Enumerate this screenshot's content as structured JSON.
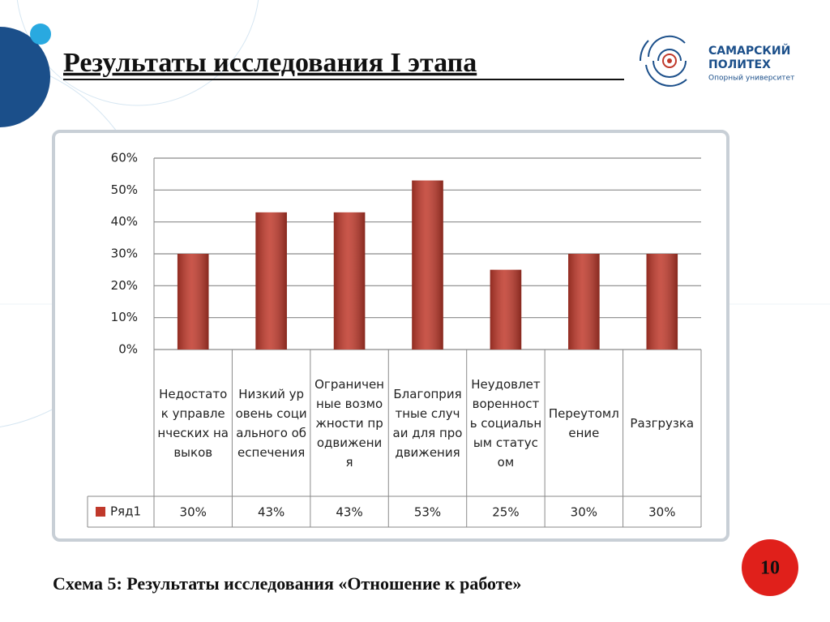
{
  "header": {
    "title": "Результаты исследования I этапа",
    "logo": {
      "line1": "САМАРСКИЙ",
      "line2": "ПОЛИТЕХ",
      "tagline": "Опорный университет"
    }
  },
  "chart_data": {
    "type": "bar",
    "categories": [
      "Недостаток управленческих навыков",
      "Низкий уровень социального обеспечения",
      "Ограниченные возможности продвижения",
      "Благоприятные случаи для продвижения",
      "Неудовлетворенность социальным статусом",
      "Переутомление",
      "Разгрузка"
    ],
    "series": [
      {
        "name": "Ряд1",
        "color": "#c0392b",
        "values": [
          30,
          43,
          43,
          53,
          25,
          30,
          30
        ],
        "value_labels": [
          "30%",
          "43%",
          "43%",
          "53%",
          "25%",
          "30%",
          "30%"
        ]
      }
    ],
    "ylim": [
      0,
      60
    ],
    "yticks": [
      {
        "value": 0,
        "label": "0%"
      },
      {
        "value": 10,
        "label": "10%"
      },
      {
        "value": 20,
        "label": "20%"
      },
      {
        "value": 30,
        "label": "30%"
      },
      {
        "value": 40,
        "label": "40%"
      },
      {
        "value": 50,
        "label": "50%"
      },
      {
        "value": 60,
        "label": "60%"
      }
    ],
    "grid": true,
    "legend": "table"
  },
  "caption": "Схема 5: Результаты исследования «Отношение к работе»",
  "page_number": "10"
}
